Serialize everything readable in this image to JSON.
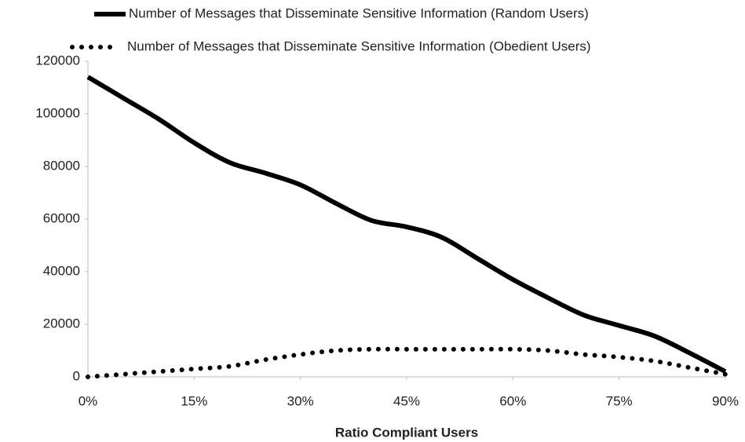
{
  "chart_data": {
    "type": "line",
    "x_label": "Ratio Compliant Users",
    "x": [
      0,
      5,
      10,
      15,
      20,
      25,
      30,
      35,
      40,
      45,
      50,
      55,
      60,
      65,
      70,
      75,
      80,
      85,
      90
    ],
    "series": [
      {
        "name": "Number of Messages that Disseminate Sensitive Information (Random Users)",
        "color": "#000000",
        "style": "solid",
        "values": [
          114000,
          106000,
          98000,
          89000,
          81500,
          77500,
          73000,
          66000,
          59500,
          57000,
          53000,
          45000,
          37000,
          30000,
          23500,
          19500,
          15500,
          9000,
          2000
        ]
      },
      {
        "name": "Number of Messages that Disseminate Sensitive Information  (Obedient Users)",
        "color": "#000000",
        "style": "dotted",
        "values": [
          0,
          1000,
          2000,
          3000,
          4000,
          6500,
          8500,
          10000,
          10500,
          10500,
          10500,
          10500,
          10500,
          10000,
          8500,
          7500,
          6000,
          3500,
          1000
        ]
      }
    ],
    "xlim": [
      0,
      90
    ],
    "xticks": [
      {
        "value": 0,
        "label": "0%"
      },
      {
        "value": 15,
        "label": "15%"
      },
      {
        "value": 30,
        "label": "30%"
      },
      {
        "value": 45,
        "label": "45%"
      },
      {
        "value": 60,
        "label": "60%"
      },
      {
        "value": 75,
        "label": "75%"
      },
      {
        "value": 90,
        "label": "90%"
      }
    ],
    "ylim": [
      0,
      120000
    ],
    "yticks": [
      0,
      20000,
      40000,
      60000,
      80000,
      100000,
      120000
    ],
    "grid": false
  }
}
